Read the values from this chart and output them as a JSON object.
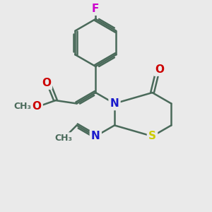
{
  "bg_color": "#eaeaea",
  "bond_color": "#4a6a5a",
  "bond_width": 1.8,
  "atom_colors": {
    "N": "#1a1acc",
    "S": "#cccc00",
    "O": "#cc0000",
    "F": "#cc00cc",
    "C": "#4a6a5a"
  },
  "font_size_atom": 11,
  "font_size_sub": 9,
  "dbo": 0.08
}
